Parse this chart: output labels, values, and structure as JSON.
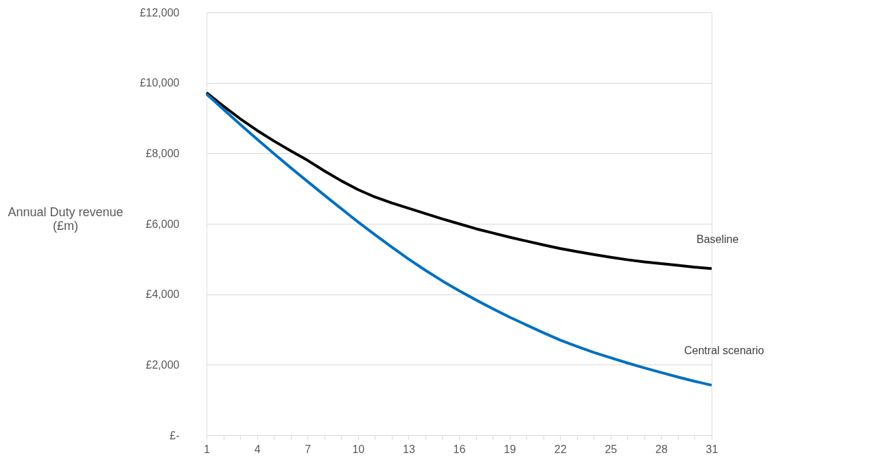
{
  "chart_data": {
    "type": "line",
    "ylabel": "Annual Duty revenue (£m)",
    "categories": [
      "1",
      null,
      null,
      "4",
      null,
      null,
      "7",
      null,
      null,
      "10",
      null,
      null,
      "13",
      null,
      null,
      "16",
      null,
      null,
      "19",
      null,
      null,
      "22",
      null,
      null,
      "25",
      null,
      null,
      "28",
      null,
      null,
      "31"
    ],
    "series": [
      {
        "name": "Baseline",
        "color": "#000000",
        "values": [
          9720,
          9340,
          8980,
          8650,
          8350,
          8070,
          7800,
          7500,
          7220,
          6970,
          6760,
          6590,
          6440,
          6290,
          6140,
          6000,
          5860,
          5740,
          5620,
          5510,
          5400,
          5300,
          5210,
          5130,
          5050,
          4980,
          4920,
          4870,
          4820,
          4770,
          4730
        ]
      },
      {
        "name": "Central scenario",
        "color": "#0070c0",
        "values": [
          9680,
          9250,
          8820,
          8400,
          7990,
          7590,
          7200,
          6810,
          6430,
          6050,
          5690,
          5340,
          5000,
          4680,
          4380,
          4100,
          3840,
          3590,
          3350,
          3130,
          2910,
          2700,
          2520,
          2350,
          2200,
          2050,
          1910,
          1780,
          1650,
          1530,
          1420
        ]
      }
    ],
    "ylim": [
      0,
      12000
    ],
    "yticks": [
      {
        "value": 0,
        "label": "£-"
      },
      {
        "value": 2000,
        "label": "£2,000"
      },
      {
        "value": 4000,
        "label": "£4,000"
      },
      {
        "value": 6000,
        "label": "£6,000"
      },
      {
        "value": 8000,
        "label": "£8,000"
      },
      {
        "value": 10000,
        "label": "£10,000"
      },
      {
        "value": 12000,
        "label": "£12,000"
      }
    ],
    "grid": "y",
    "legend": false,
    "marker": "none",
    "line_style": "solid"
  }
}
